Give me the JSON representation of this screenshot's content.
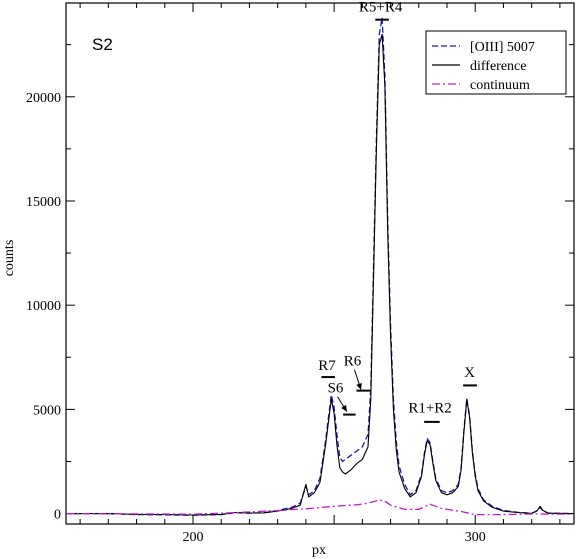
{
  "chart_data": {
    "type": "line",
    "panel_label": "S2",
    "xlabel": "px",
    "ylabel": "counts",
    "xlim": [
      155,
      335
    ],
    "ylim": [
      -500,
      24500
    ],
    "x_ticks": [
      200,
      250,
      300
    ],
    "x_tick_labels": [
      "200",
      "",
      "300"
    ],
    "y_ticks": [
      0,
      5000,
      10000,
      15000,
      20000
    ],
    "y_tick_labels": [
      "0",
      "5000",
      "10000",
      "15000",
      "20000"
    ],
    "legend_position": "top-right",
    "series": [
      {
        "name": "[OIII] 5007",
        "color": "#1a1aa8",
        "dash": "dashed",
        "points": [
          [
            155,
            0
          ],
          [
            170,
            0
          ],
          [
            180,
            -50
          ],
          [
            190,
            -60
          ],
          [
            200,
            -80
          ],
          [
            210,
            -50
          ],
          [
            215,
            40
          ],
          [
            220,
            20
          ],
          [
            225,
            40
          ],
          [
            230,
            150
          ],
          [
            235,
            300
          ],
          [
            238,
            500
          ],
          [
            240,
            1300
          ],
          [
            241,
            900
          ],
          [
            243,
            1100
          ],
          [
            245,
            1700
          ],
          [
            247,
            3500
          ],
          [
            249,
            5700
          ],
          [
            250,
            5100
          ],
          [
            251,
            3800
          ],
          [
            252,
            2700
          ],
          [
            253,
            2500
          ],
          [
            254,
            2600
          ],
          [
            256,
            2800
          ],
          [
            258,
            3000
          ],
          [
            260,
            3200
          ],
          [
            262,
            3800
          ],
          [
            263,
            6000
          ],
          [
            264,
            12000
          ],
          [
            265,
            18000
          ],
          [
            266,
            23000
          ],
          [
            267,
            23800
          ],
          [
            268,
            21000
          ],
          [
            269,
            14000
          ],
          [
            270,
            9000
          ],
          [
            271,
            5500
          ],
          [
            272,
            3500
          ],
          [
            273,
            2300
          ],
          [
            275,
            1400
          ],
          [
            277,
            900
          ],
          [
            279,
            1100
          ],
          [
            281,
            1900
          ],
          [
            282,
            2900
          ],
          [
            283,
            3600
          ],
          [
            284,
            3400
          ],
          [
            285,
            2500
          ],
          [
            286,
            1700
          ],
          [
            288,
            1100
          ],
          [
            290,
            1000
          ],
          [
            292,
            1100
          ],
          [
            294,
            1400
          ],
          [
            295,
            2200
          ],
          [
            296,
            4000
          ],
          [
            297,
            5500
          ],
          [
            298,
            4700
          ],
          [
            299,
            3000
          ],
          [
            300,
            1900
          ],
          [
            301,
            1200
          ],
          [
            303,
            650
          ],
          [
            306,
            350
          ],
          [
            310,
            150
          ],
          [
            315,
            60
          ],
          [
            320,
            20
          ],
          [
            322,
            120
          ],
          [
            323,
            300
          ],
          [
            324,
            120
          ],
          [
            326,
            20
          ],
          [
            335,
            0
          ]
        ]
      },
      {
        "name": "difference",
        "color": "#000000",
        "dash": "solid",
        "points": [
          [
            155,
            0
          ],
          [
            170,
            0
          ],
          [
            180,
            -40
          ],
          [
            190,
            -50
          ],
          [
            200,
            -70
          ],
          [
            210,
            -40
          ],
          [
            215,
            50
          ],
          [
            220,
            30
          ],
          [
            225,
            30
          ],
          [
            230,
            120
          ],
          [
            235,
            250
          ],
          [
            238,
            400
          ],
          [
            240,
            1400
          ],
          [
            241,
            800
          ],
          [
            243,
            1000
          ],
          [
            245,
            1500
          ],
          [
            247,
            3300
          ],
          [
            249,
            5500
          ],
          [
            250,
            4800
          ],
          [
            251,
            3300
          ],
          [
            252,
            2200
          ],
          [
            253,
            2000
          ],
          [
            254,
            1900
          ],
          [
            256,
            2100
          ],
          [
            258,
            2400
          ],
          [
            260,
            2600
          ],
          [
            262,
            3200
          ],
          [
            263,
            5500
          ],
          [
            264,
            11500
          ],
          [
            265,
            17500
          ],
          [
            266,
            22500
          ],
          [
            267,
            23000
          ],
          [
            268,
            20500
          ],
          [
            269,
            13500
          ],
          [
            270,
            8500
          ],
          [
            271,
            5000
          ],
          [
            272,
            3100
          ],
          [
            273,
            2000
          ],
          [
            275,
            1200
          ],
          [
            277,
            800
          ],
          [
            279,
            1000
          ],
          [
            281,
            1800
          ],
          [
            282,
            2800
          ],
          [
            283,
            3500
          ],
          [
            284,
            3300
          ],
          [
            285,
            2400
          ],
          [
            286,
            1600
          ],
          [
            288,
            1000
          ],
          [
            290,
            900
          ],
          [
            292,
            1000
          ],
          [
            294,
            1300
          ],
          [
            295,
            2100
          ],
          [
            296,
            3900
          ],
          [
            297,
            5500
          ],
          [
            298,
            4600
          ],
          [
            299,
            2900
          ],
          [
            300,
            1800
          ],
          [
            301,
            1100
          ],
          [
            303,
            600
          ],
          [
            306,
            300
          ],
          [
            310,
            120
          ],
          [
            315,
            50
          ],
          [
            320,
            10
          ],
          [
            322,
            150
          ],
          [
            323,
            350
          ],
          [
            324,
            150
          ],
          [
            326,
            20
          ],
          [
            335,
            0
          ]
        ]
      },
      {
        "name": "continuum",
        "color": "#c020c0",
        "dash": "dashdot",
        "points": [
          [
            155,
            0
          ],
          [
            200,
            -30
          ],
          [
            210,
            20
          ],
          [
            220,
            80
          ],
          [
            230,
            150
          ],
          [
            240,
            230
          ],
          [
            250,
            350
          ],
          [
            258,
            420
          ],
          [
            262,
            500
          ],
          [
            266,
            650
          ],
          [
            268,
            600
          ],
          [
            270,
            400
          ],
          [
            275,
            200
          ],
          [
            280,
            200
          ],
          [
            284,
            450
          ],
          [
            288,
            250
          ],
          [
            295,
            100
          ],
          [
            300,
            -50
          ],
          [
            310,
            -50
          ],
          [
            320,
            -20
          ],
          [
            335,
            -30
          ]
        ]
      }
    ],
    "annotations": [
      {
        "text": "R5+R4",
        "bar_x": [
          264.6,
          269.4
        ],
        "bar_y": 23700,
        "label_x": 266.5,
        "label_y": 24100
      },
      {
        "text": "R7",
        "bar_x": [
          245.5,
          250.3
        ],
        "bar_y": 6550,
        "label_x": 247.5,
        "label_y": 6900
      },
      {
        "text": "R6",
        "bar_x": [
          257.9,
          262.7
        ],
        "bar_y": 5900,
        "label_x": 256.5,
        "label_y": 7100,
        "arrow_to": [
          259.5,
          5950
        ]
      },
      {
        "text": "S6",
        "bar_x": [
          253.2,
          257.6
        ],
        "bar_y": 4750,
        "label_x": 250.5,
        "label_y": 5800,
        "arrow_to": [
          254.5,
          4900
        ]
      },
      {
        "text": "R1+R2",
        "bar_x": [
          281.9,
          287.4
        ],
        "bar_y": 4400,
        "label_x": 284,
        "label_y": 4850
      },
      {
        "text": "X",
        "bar_x": [
          295.7,
          300.6
        ],
        "bar_y": 6150,
        "label_x": 298,
        "label_y": 6550
      }
    ]
  }
}
